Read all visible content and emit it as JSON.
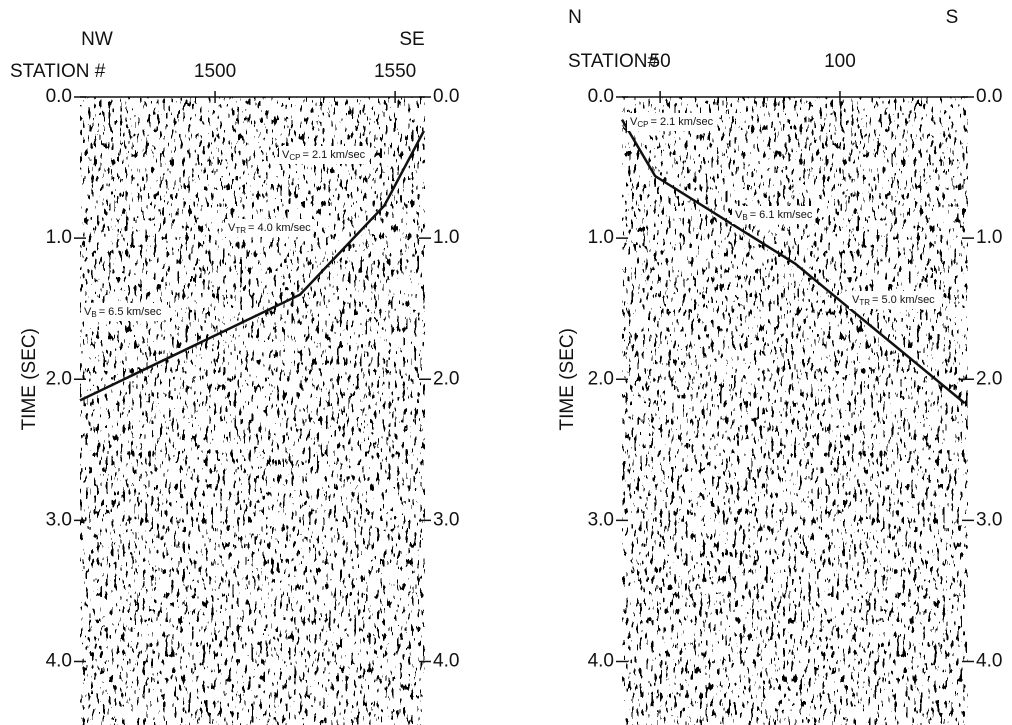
{
  "chart_data": [
    {
      "type": "line",
      "direction_left": "NW",
      "direction_right": "SE",
      "x_label": "STATION #",
      "y_label": "TIME  (SEC)",
      "x": [
        1462.5,
        1523.6,
        1547,
        1558
      ],
      "values": [
        2.15,
        1.4,
        0.77,
        0.24
      ],
      "color": "#111111",
      "xlim": [
        1462.5,
        1558.3
      ],
      "xticks": [
        1500,
        1550
      ],
      "ylim": [
        0,
        4.45
      ],
      "yticks": [
        {
          "value": 0,
          "label": "0.0"
        },
        {
          "value": 1,
          "label": "1.0"
        },
        {
          "value": 2,
          "label": "2.0"
        },
        {
          "value": 3,
          "label": "3.0"
        },
        {
          "value": 4,
          "label": "4.0"
        }
      ],
      "annotations": [
        {
          "symbol": "V",
          "subscript": "CP",
          "text": "= 2.1 km/sec"
        },
        {
          "symbol": "V",
          "subscript": "TR",
          "text": "= 4.0 km/sec"
        },
        {
          "symbol": "V",
          "subscript": "B",
          "text": "= 6.5 km/sec"
        }
      ]
    },
    {
      "type": "line",
      "direction_left": "N",
      "direction_right": "S",
      "x_label": "STATION#",
      "y_label": "TIME  (SEC)",
      "x": [
        39.4,
        48.6,
        87.5,
        134.7
      ],
      "values": [
        0.16,
        0.56,
        1.18,
        2.17
      ],
      "color": "#111111",
      "xlim": [
        39.4,
        135.6
      ],
      "xticks": [
        50,
        100
      ],
      "ylim": [
        0,
        4.45
      ],
      "yticks": [
        {
          "value": 0,
          "label": "0.0"
        },
        {
          "value": 1,
          "label": "1.0"
        },
        {
          "value": 2,
          "label": "2.0"
        },
        {
          "value": 3,
          "label": "3.0"
        },
        {
          "value": 4,
          "label": "4.0"
        }
      ],
      "annotations": [
        {
          "symbol": "V",
          "subscript": "CP",
          "text": "= 2.1 km/sec"
        },
        {
          "symbol": "V",
          "subscript": "B",
          "text": "= 6.1 km/sec"
        },
        {
          "symbol": "V",
          "subscript": "TR",
          "text": "= 5.0 km/sec"
        }
      ]
    }
  ]
}
